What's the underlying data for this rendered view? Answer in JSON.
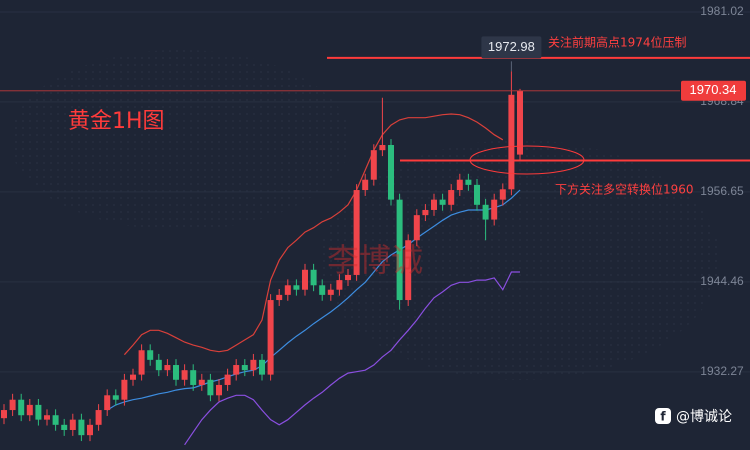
{
  "chart_data": {
    "type": "candlestick",
    "title": "黄金1H图",
    "watermark": "李博诚",
    "footer": "@博诚论",
    "up_color": "#f0454b",
    "down_color": "#2bbd7e",
    "ylim": [
      1921.69,
      1982.64
    ],
    "yticks": [
      1981.02,
      1968.84,
      1956.65,
      1944.46,
      1932.27
    ],
    "grid": true,
    "open": [
      1926.0,
      1927.1,
      1928.5,
      1926.4,
      1927.8,
      1925.8,
      1926.4,
      1925.1,
      1924.4,
      1925.8,
      1923.7,
      1925.1,
      1927.1,
      1929.1,
      1928.5,
      1931.2,
      1931.9,
      1935.2,
      1933.9,
      1932.5,
      1933.2,
      1931.2,
      1932.5,
      1930.5,
      1931.2,
      1929.1,
      1930.5,
      1931.9,
      1933.2,
      1932.5,
      1933.9,
      1931.9,
      1942.0,
      1942.7,
      1944.0,
      1943.4,
      1946.1,
      1944.0,
      1942.7,
      1943.4,
      1944.7,
      1945.4,
      1956.9,
      1958.3,
      1962.3,
      1963.0,
      1955.6,
      1942.0,
      1950.1,
      1953.5,
      1954.2,
      1955.6,
      1954.9,
      1956.9,
      1958.3,
      1957.6,
      1954.9,
      1952.9,
      1955.6,
      1957.0,
      1961.7
    ],
    "high": [
      1927.9,
      1929.3,
      1929.3,
      1928.6,
      1928.6,
      1927.2,
      1927.2,
      1925.9,
      1926.6,
      1926.6,
      1925.9,
      1927.9,
      1929.9,
      1929.9,
      1932.0,
      1932.7,
      1936.0,
      1936.0,
      1934.7,
      1934.0,
      1934.0,
      1933.3,
      1933.3,
      1932.0,
      1932.0,
      1931.3,
      1932.7,
      1934.0,
      1934.0,
      1934.7,
      1934.7,
      1942.8,
      1943.5,
      1944.8,
      1944.8,
      1946.9,
      1946.9,
      1944.8,
      1944.2,
      1945.5,
      1946.2,
      1957.7,
      1959.1,
      1963.1,
      1969.4,
      1963.8,
      1956.4,
      1950.9,
      1954.3,
      1955.0,
      1956.4,
      1956.4,
      1957.7,
      1959.1,
      1959.1,
      1958.4,
      1955.7,
      1956.4,
      1957.8,
      1972.98,
      1970.6
    ],
    "low": [
      1925.2,
      1926.3,
      1925.6,
      1925.6,
      1925.0,
      1925.0,
      1924.3,
      1923.6,
      1923.6,
      1922.9,
      1922.9,
      1924.3,
      1926.3,
      1927.7,
      1927.7,
      1930.4,
      1931.1,
      1933.1,
      1931.7,
      1931.7,
      1930.4,
      1930.4,
      1929.7,
      1929.7,
      1928.3,
      1928.3,
      1929.7,
      1931.1,
      1931.7,
      1931.7,
      1931.1,
      1931.1,
      1941.2,
      1941.9,
      1942.6,
      1942.6,
      1943.2,
      1941.9,
      1941.9,
      1942.6,
      1943.9,
      1944.6,
      1956.1,
      1957.5,
      1961.5,
      1954.8,
      1940.7,
      1941.2,
      1949.3,
      1952.7,
      1953.4,
      1954.1,
      1954.1,
      1956.1,
      1956.8,
      1954.1,
      1950.1,
      1952.1,
      1954.8,
      1956.2,
      1960.9
    ],
    "close": [
      1927.1,
      1928.5,
      1926.4,
      1927.8,
      1925.8,
      1926.4,
      1925.1,
      1924.4,
      1925.8,
      1923.7,
      1925.1,
      1927.1,
      1929.1,
      1928.5,
      1931.2,
      1931.9,
      1935.2,
      1933.9,
      1932.5,
      1933.2,
      1931.2,
      1932.5,
      1930.5,
      1931.2,
      1929.1,
      1930.5,
      1931.9,
      1933.2,
      1932.5,
      1933.9,
      1931.9,
      1942.0,
      1942.7,
      1944.0,
      1943.4,
      1946.1,
      1944.0,
      1942.7,
      1943.4,
      1944.7,
      1945.4,
      1956.9,
      1958.3,
      1962.3,
      1963.0,
      1955.6,
      1942.0,
      1950.1,
      1953.5,
      1954.2,
      1955.6,
      1954.9,
      1956.9,
      1958.3,
      1957.6,
      1954.9,
      1952.9,
      1955.6,
      1957.0,
      1969.8,
      1970.34
    ],
    "bands": [
      {
        "color": "#d9403a",
        "values": [
          null,
          null,
          null,
          null,
          null,
          null,
          null,
          null,
          null,
          null,
          null,
          null,
          null,
          null,
          1934.6,
          1935.9,
          1937.3,
          1937.9,
          1937.9,
          1937.5,
          1936.9,
          1936.3,
          1935.9,
          1935.6,
          1935.2,
          1935.0,
          1935.2,
          1935.9,
          1936.6,
          1937.3,
          1939.3,
          1944.7,
          1947.4,
          1949.1,
          1950.1,
          1951.2,
          1951.8,
          1952.6,
          1953.1,
          1953.9,
          1954.9,
          1956.9,
          1959.6,
          1962.3,
          1964.4,
          1965.7,
          1966.4,
          1966.7,
          1966.7,
          1966.7,
          1966.9,
          1967.1,
          1967.2,
          1967.1,
          1966.7,
          1966.1,
          1965.3,
          1964.4,
          1963.7,
          null,
          null
        ]
      },
      {
        "color": "#3d8de0",
        "values": [
          null,
          null,
          null,
          null,
          null,
          null,
          null,
          null,
          null,
          null,
          null,
          null,
          1927.1,
          1927.8,
          1928.2,
          1928.5,
          1928.7,
          1929.0,
          1929.3,
          1929.5,
          1929.8,
          1930.0,
          1930.1,
          1930.5,
          1930.9,
          1931.2,
          1931.6,
          1932.0,
          1932.3,
          1932.5,
          1933.1,
          1934.2,
          1935.2,
          1936.2,
          1937.1,
          1937.9,
          1938.8,
          1939.6,
          1940.4,
          1941.3,
          1942.3,
          1943.4,
          1944.4,
          1945.8,
          1947.2,
          1948.1,
          1948.8,
          1949.5,
          1950.4,
          1951.2,
          1952.0,
          1952.8,
          1953.5,
          1953.9,
          1954.2,
          1954.2,
          1954.2,
          1954.5,
          1954.9,
          1955.8,
          1956.9
        ]
      },
      {
        "color": "#8a4fe0",
        "values": [
          null,
          null,
          null,
          null,
          null,
          null,
          null,
          null,
          null,
          null,
          null,
          null,
          null,
          null,
          null,
          null,
          null,
          null,
          null,
          null,
          null,
          1922.4,
          1924.1,
          1925.8,
          1927.1,
          1928.2,
          1928.7,
          1929.1,
          1929.1,
          1928.5,
          1927.1,
          1925.8,
          1925.1,
          1925.8,
          1926.8,
          1927.8,
          1928.7,
          1929.5,
          1930.5,
          1931.4,
          1932.1,
          1932.3,
          1932.5,
          1933.2,
          1934.3,
          1935.2,
          1936.6,
          1937.9,
          1939.3,
          1940.9,
          1942.3,
          1943.1,
          1944.0,
          1944.4,
          1944.4,
          1944.7,
          1944.7,
          1945.0,
          1943.4,
          1945.8,
          1945.8
        ]
      }
    ],
    "hlines": [
      {
        "value": 1974.8,
        "color": "#ff3b3b"
      },
      {
        "value": 1960.9,
        "color": "#ff3b3b"
      }
    ],
    "annotations": [
      "关注前期高点1974位压制",
      "下方关注多空转换位1960"
    ]
  }
}
